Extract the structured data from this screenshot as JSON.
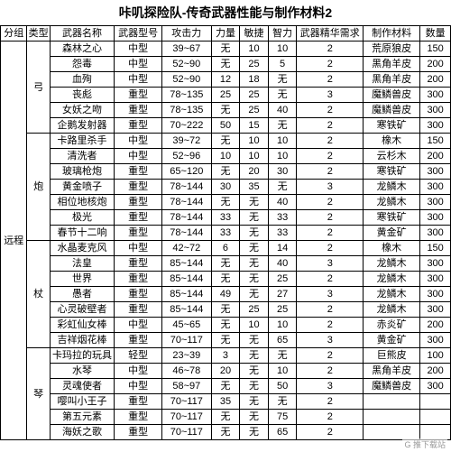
{
  "title": "咔叽探险队-传奇武器性能与制作材料2",
  "columns": [
    "分组",
    "类型",
    "武器名称",
    "武器型号",
    "攻击力",
    "力量",
    "敏捷",
    "智力",
    "武器精华需求",
    "制作材料",
    "数量"
  ],
  "group": "远程",
  "categories": [
    {
      "type_label": "弓",
      "rows": [
        {
          "name": "森林之心",
          "model": "中型",
          "atk": "39~67",
          "str": "无",
          "agi": "10",
          "int": "10",
          "ess": "2",
          "mat": "荒原狼皮",
          "qty": "150"
        },
        {
          "name": "怨毒",
          "model": "中型",
          "atk": "52~90",
          "str": "无",
          "agi": "25",
          "int": "5",
          "ess": "2",
          "mat": "黑角羊皮",
          "qty": "200"
        },
        {
          "name": "血殉",
          "model": "中型",
          "atk": "52~90",
          "str": "12",
          "agi": "18",
          "int": "无",
          "ess": "2",
          "mat": "黑角羊皮",
          "qty": "200"
        },
        {
          "name": "丧彪",
          "model": "重型",
          "atk": "78~135",
          "str": "25",
          "agi": "25",
          "int": "无",
          "ess": "3",
          "mat": "魔鳞兽皮",
          "qty": "300"
        },
        {
          "name": "女妖之吻",
          "model": "重型",
          "atk": "78~135",
          "str": "无",
          "agi": "25",
          "int": "40",
          "ess": "2",
          "mat": "魔鳞兽皮",
          "qty": "300"
        },
        {
          "name": "企鹅发射器",
          "model": "重型",
          "atk": "70~222",
          "str": "50",
          "agi": "15",
          "int": "无",
          "ess": "2",
          "mat": "寒铁矿",
          "qty": "300"
        }
      ]
    },
    {
      "type_label": "炮",
      "rows": [
        {
          "name": "卡路里杀手",
          "model": "中型",
          "atk": "39~72",
          "str": "无",
          "agi": "10",
          "int": "10",
          "ess": "2",
          "mat": "橡木",
          "qty": "150"
        },
        {
          "name": "清洗者",
          "model": "中型",
          "atk": "52~96",
          "str": "10",
          "agi": "10",
          "int": "10",
          "ess": "2",
          "mat": "云杉木",
          "qty": "200"
        },
        {
          "name": "玻璃枪炮",
          "model": "重型",
          "atk": "65~120",
          "str": "无",
          "agi": "20",
          "int": "30",
          "ess": "2",
          "mat": "寒铁矿",
          "qty": "300"
        },
        {
          "name": "黄金喷子",
          "model": "重型",
          "atk": "78~144",
          "str": "30",
          "agi": "35",
          "int": "无",
          "ess": "3",
          "mat": "龙鳞木",
          "qty": "300"
        },
        {
          "name": "相位地核炮",
          "model": "重型",
          "atk": "78~144",
          "str": "无",
          "agi": "无",
          "int": "40",
          "ess": "2",
          "mat": "龙鳞木",
          "qty": "300"
        },
        {
          "name": "极光",
          "model": "重型",
          "atk": "78~144",
          "str": "33",
          "agi": "无",
          "int": "33",
          "ess": "2",
          "mat": "寒铁矿",
          "qty": "300"
        },
        {
          "name": "春节十二响",
          "model": "重型",
          "atk": "78~144",
          "str": "33",
          "agi": "无",
          "int": "33",
          "ess": "2",
          "mat": "黄金矿",
          "qty": "300"
        }
      ]
    },
    {
      "type_label": "杖",
      "rows": [
        {
          "name": "水晶麦克风",
          "model": "中型",
          "atk": "42~72",
          "str": "6",
          "agi": "无",
          "int": "14",
          "ess": "2",
          "mat": "橡木",
          "qty": "150"
        },
        {
          "name": "法皇",
          "model": "重型",
          "atk": "85~144",
          "str": "无",
          "agi": "无",
          "int": "40",
          "ess": "3",
          "mat": "龙鳞木",
          "qty": "300"
        },
        {
          "name": "世界",
          "model": "重型",
          "atk": "85~144",
          "str": "无",
          "agi": "无",
          "int": "25",
          "ess": "2",
          "mat": "龙鳞木",
          "qty": "300"
        },
        {
          "name": "愚者",
          "model": "重型",
          "atk": "85~144",
          "str": "49",
          "agi": "无",
          "int": "27",
          "ess": "3",
          "mat": "龙鳞木",
          "qty": "300"
        },
        {
          "name": "心灵破壁者",
          "model": "重型",
          "atk": "85~144",
          "str": "无",
          "agi": "25",
          "int": "25",
          "ess": "2",
          "mat": "龙鳞木",
          "qty": "300"
        },
        {
          "name": "彩虹仙女棒",
          "model": "中型",
          "atk": "45~65",
          "str": "无",
          "agi": "10",
          "int": "10",
          "ess": "2",
          "mat": "赤炎矿",
          "qty": "200"
        },
        {
          "name": "吉祥烟花棒",
          "model": "重型",
          "atk": "70~117",
          "str": "无",
          "agi": "无",
          "int": "65",
          "ess": "3",
          "mat": "黄金矿",
          "qty": "300"
        }
      ]
    },
    {
      "type_label": "琴",
      "rows": [
        {
          "name": "卡玛拉的玩具",
          "model": "轻型",
          "atk": "23~39",
          "str": "3",
          "agi": "无",
          "int": "无",
          "ess": "2",
          "mat": "巨熊皮",
          "qty": "100"
        },
        {
          "name": "水琴",
          "model": "中型",
          "atk": "46~78",
          "str": "20",
          "agi": "无",
          "int": "10",
          "ess": "2",
          "mat": "黑角羊皮",
          "qty": "200"
        },
        {
          "name": "灵魂使者",
          "model": "中型",
          "atk": "58~97",
          "str": "无",
          "agi": "无",
          "int": "50",
          "ess": "3",
          "mat": "魔鳞兽皮",
          "qty": "300"
        },
        {
          "name": "嘤叫小王子",
          "model": "重型",
          "atk": "70~117",
          "str": "35",
          "agi": "无",
          "int": "无",
          "ess": "2",
          "mat": "",
          "qty": ""
        },
        {
          "name": "第五元素",
          "model": "重型",
          "atk": "70~117",
          "str": "无",
          "agi": "无",
          "int": "75",
          "ess": "2",
          "mat": "",
          "qty": ""
        },
        {
          "name": "海妖之歌",
          "model": "重型",
          "atk": "70~117",
          "str": "无",
          "agi": "无",
          "int": "65",
          "ess": "2",
          "mat": "",
          "qty": ""
        }
      ]
    }
  ],
  "watermark": "G 推下载站"
}
